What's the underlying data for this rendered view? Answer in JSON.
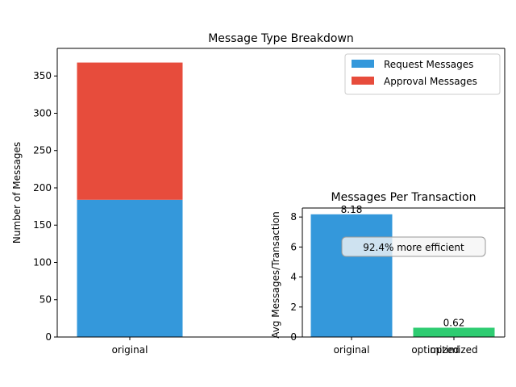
{
  "chart_data": [
    {
      "type": "bar",
      "stacked": true,
      "title": "Message Type Breakdown",
      "xlabel": "",
      "ylabel": "Number of Messages",
      "categories": [
        "original",
        "optimized"
      ],
      "x_tick_labels": [
        "original"
      ],
      "ylim": [
        0,
        387
      ],
      "yticks": [
        0,
        50,
        100,
        150,
        200,
        250,
        300,
        350
      ],
      "series": [
        {
          "name": "Request Messages",
          "color": "#3498db",
          "values": [
            184,
            0
          ]
        },
        {
          "name": "Approval Messages",
          "color": "#e74c3c",
          "values": [
            184,
            0
          ]
        }
      ],
      "legend": "top-right",
      "grid": false
    },
    {
      "type": "bar",
      "title": "Messages Per Transaction",
      "xlabel": "",
      "ylabel": "Avg Messages/Transaction",
      "categories": [
        "original",
        "optimized"
      ],
      "values": [
        8.18,
        0.62
      ],
      "value_labels": [
        "8.18",
        "0.62"
      ],
      "colors": [
        "#3498db",
        "#2ecc71"
      ],
      "ylim": [
        0,
        8.6
      ],
      "yticks": [
        0,
        2,
        4,
        6,
        8
      ],
      "annotation": "92.4% more efficient",
      "grid": false
    }
  ]
}
